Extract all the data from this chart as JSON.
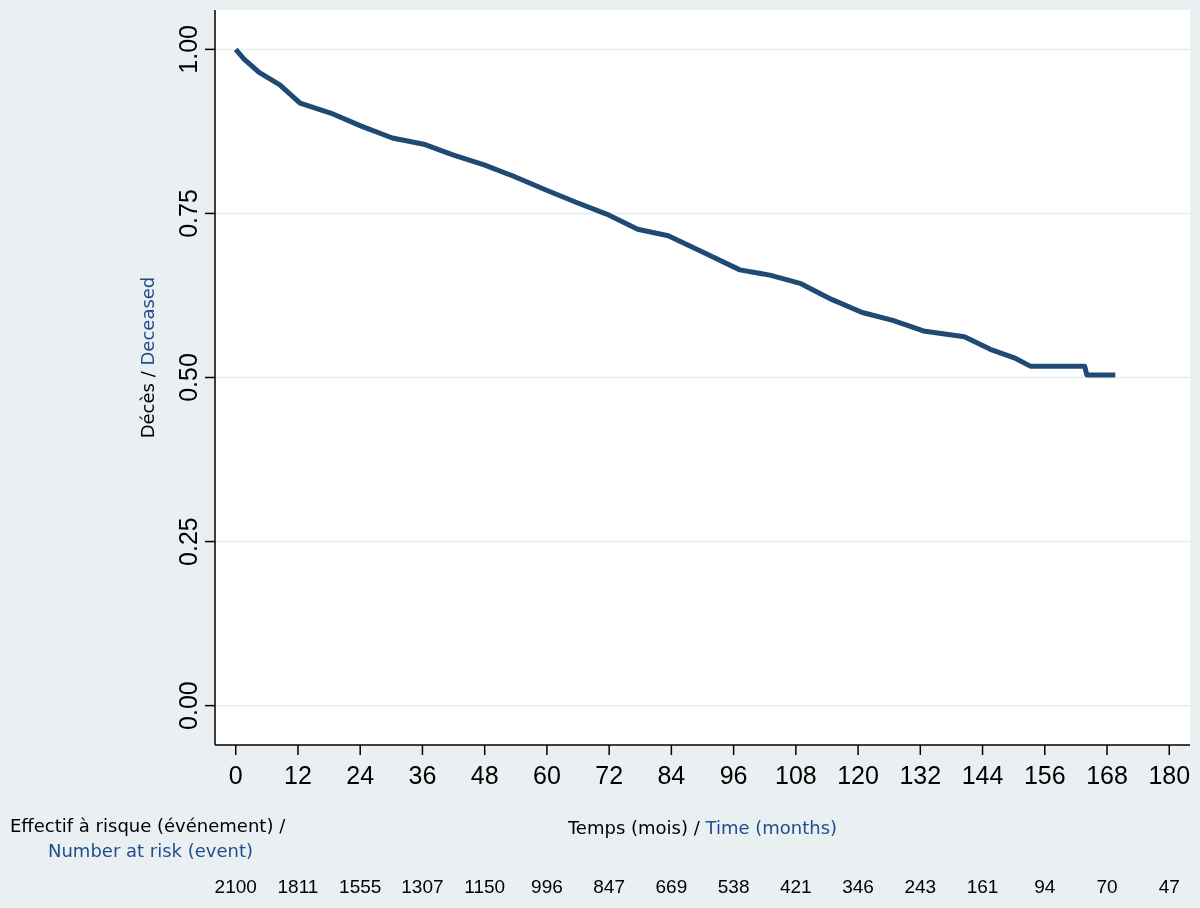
{
  "chart_data": {
    "type": "line",
    "xlabel": "Temps (mois) / Time (months)",
    "ylabel": "Décès / Deceased",
    "x2label": "Effectif à risque (événement) / Number at risk (event)",
    "x": [
      0,
      1.6,
      4.5,
      8.5,
      12.4,
      18.3,
      24.2,
      30.2,
      36.5,
      42,
      47.9,
      53.8,
      59.7,
      65.6,
      71.5,
      77.5,
      83.4,
      89.3,
      97.2,
      103,
      109,
      114.9,
      120.8,
      126.7,
      132.6,
      140.5,
      145.5,
      150.4,
      153.3,
      163.7,
      164.1,
      169.6
    ],
    "series": [
      {
        "color": "#1f4a73",
        "values": [
          1.0,
          0.985,
          0.965,
          0.946,
          0.918,
          0.903,
          0.883,
          0.865,
          0.855,
          0.839,
          0.824,
          0.806,
          0.786,
          0.767,
          0.749,
          0.726,
          0.716,
          0.694,
          0.664,
          0.656,
          0.643,
          0.619,
          0.599,
          0.587,
          0.571,
          0.562,
          0.543,
          0.529,
          0.517,
          0.517,
          0.504,
          0.504
        ]
      }
    ],
    "xlim": [
      -4,
      184
    ],
    "xticks": [
      0,
      12,
      24,
      36,
      48,
      60,
      72,
      84,
      96,
      108,
      120,
      132,
      144,
      156,
      168,
      180
    ],
    "ylim": [
      -0.06,
      1.06
    ],
    "yticks": [
      {
        "value": 0,
        "label": "0.00"
      },
      {
        "value": 0.25,
        "label": "0.25"
      },
      {
        "value": 0.5,
        "label": "0.50"
      },
      {
        "value": 0.75,
        "label": "0.75"
      },
      {
        "value": 1,
        "label": "1.00"
      }
    ],
    "annotations": [
      "2100",
      "1811",
      "1555",
      "1307",
      "1150",
      "996",
      "847",
      "669",
      "538",
      "421",
      "346",
      "243",
      "161",
      "94",
      "70",
      "47"
    ],
    "grid": "y"
  }
}
